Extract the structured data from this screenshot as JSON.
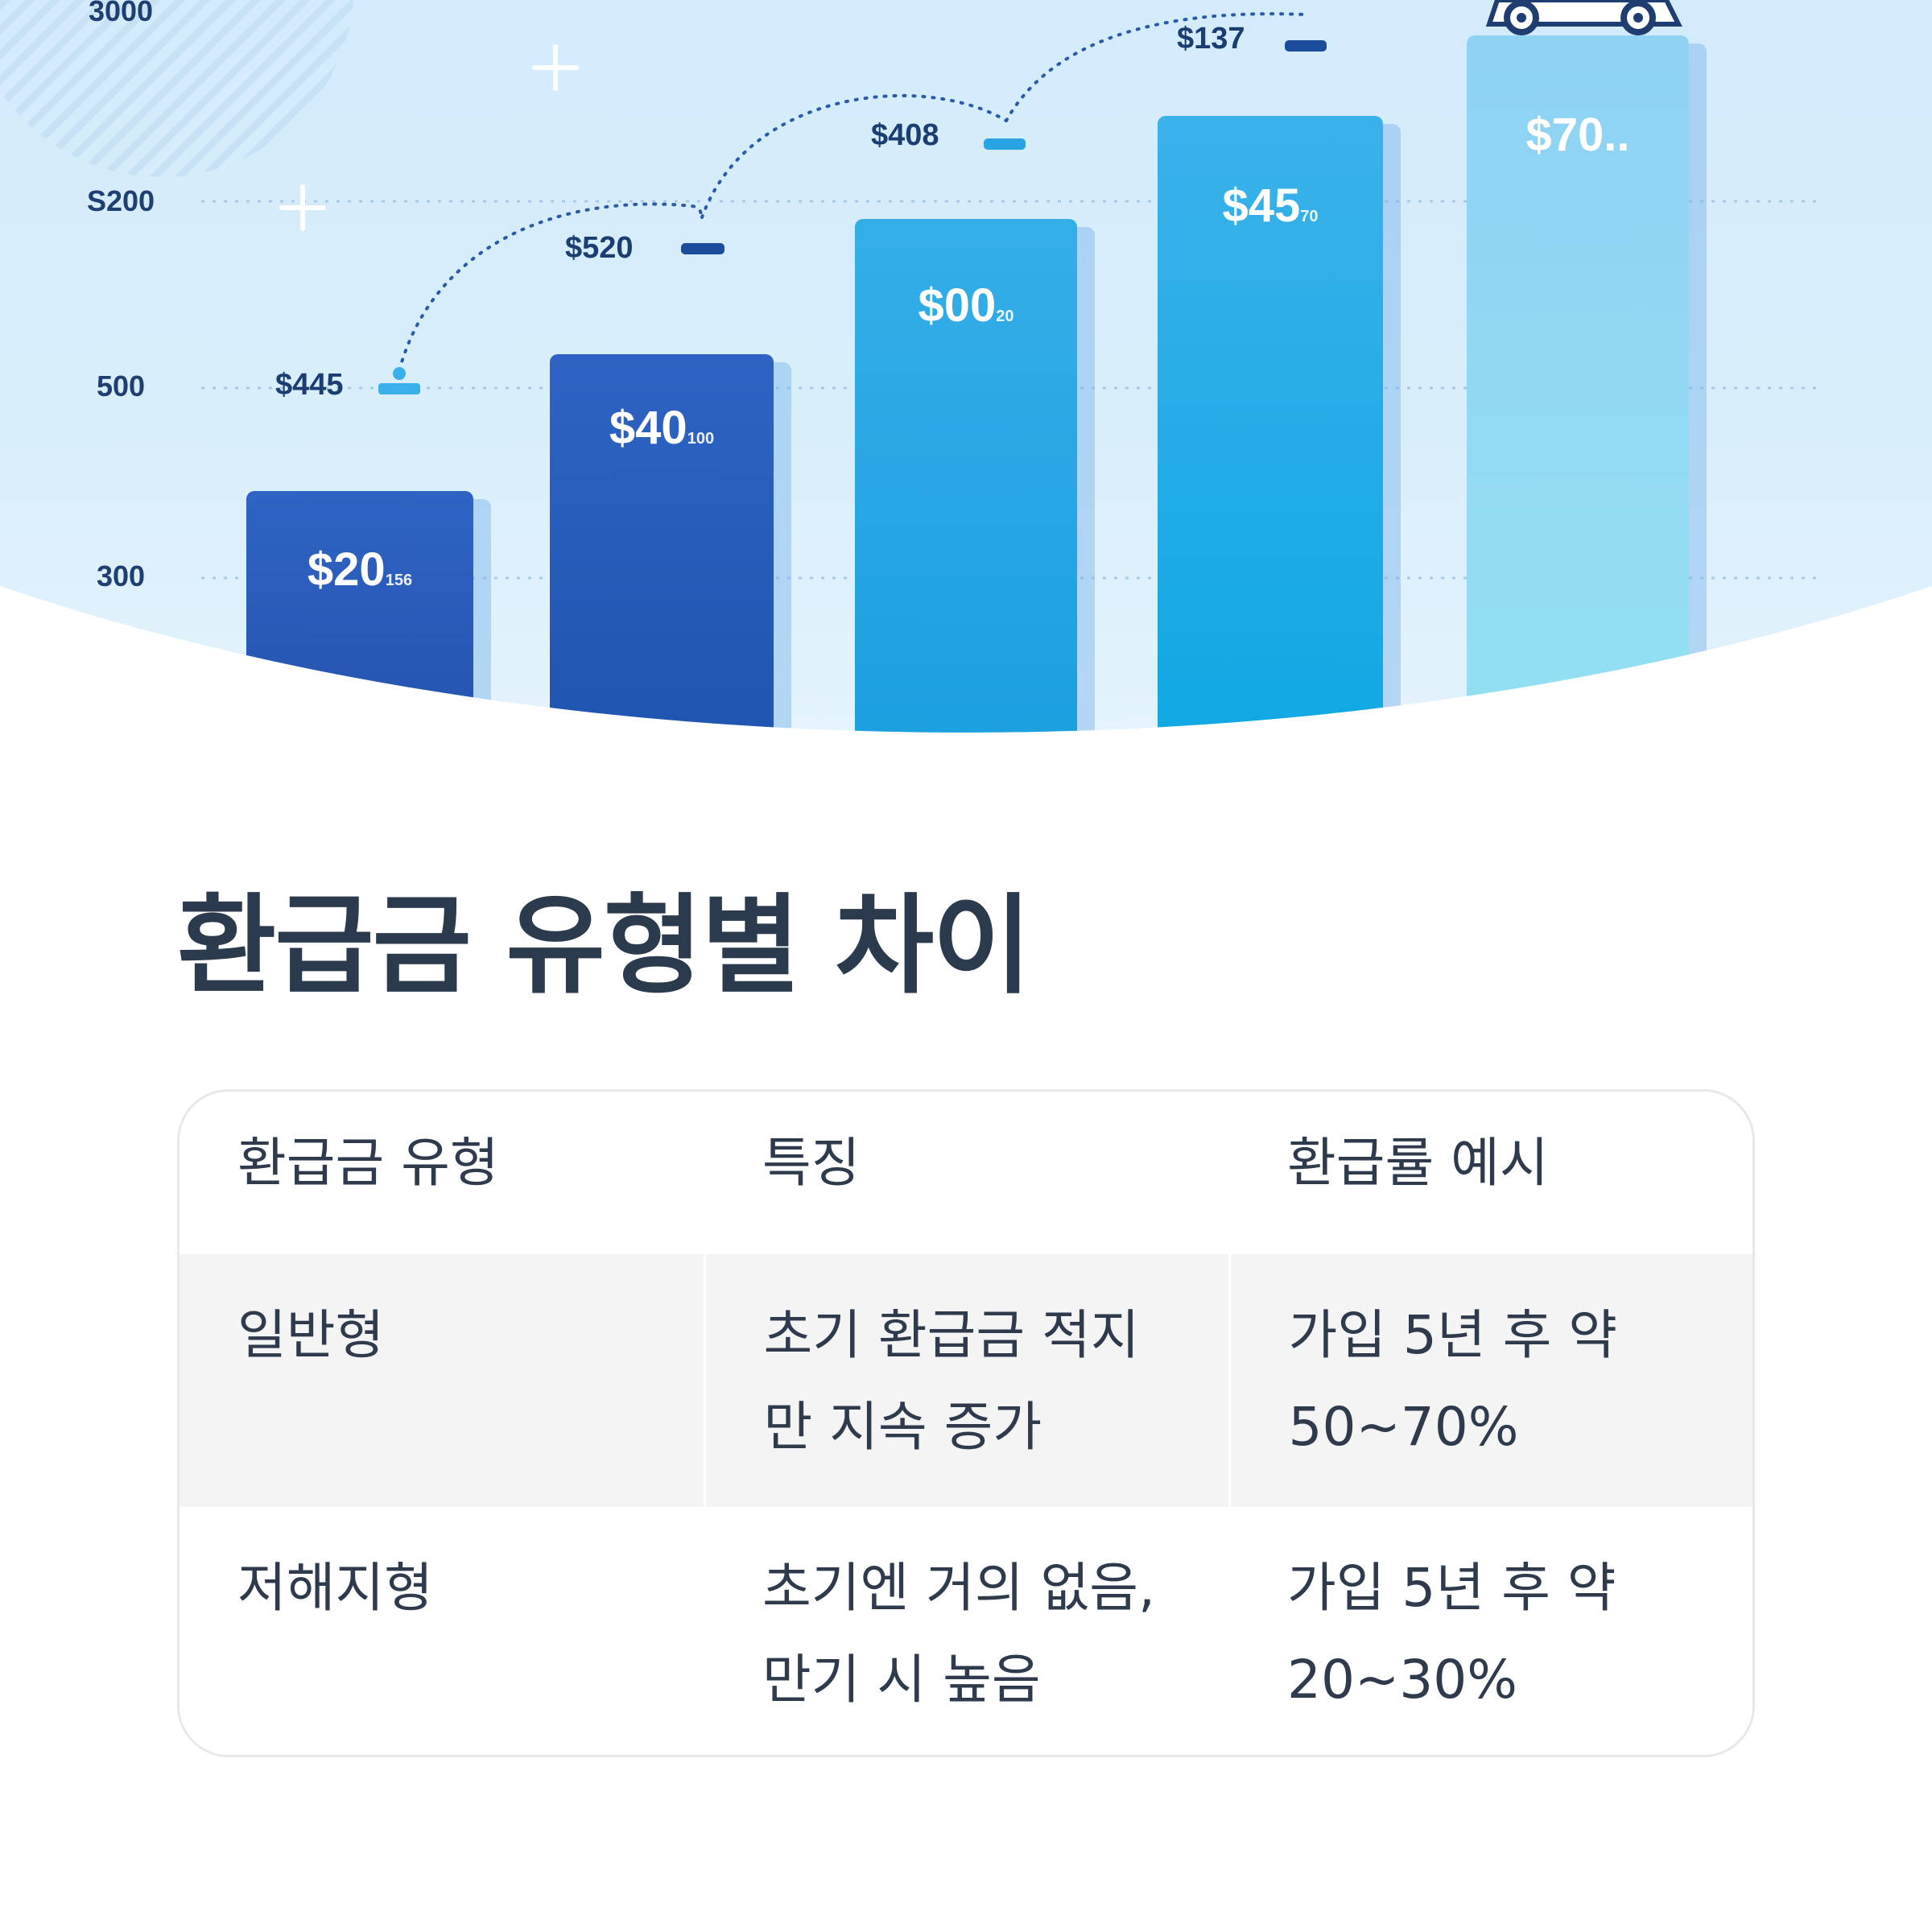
{
  "hero": {
    "y_ticks": [
      "3000",
      "S200",
      "500",
      "300"
    ],
    "bars": [
      {
        "main": "$20",
        "sup": "156",
        "color_top": "#2f64c4",
        "color_bottom": "#2451ae"
      },
      {
        "main": "$40",
        "sup": "100",
        "color_top": "#2e63c3",
        "color_bottom": "#1f55b0"
      },
      {
        "main": "$00",
        "sup": "20",
        "color_top": "#35aee8",
        "color_bottom": "#1b9fe0"
      },
      {
        "main": "$45",
        "sup": "70",
        "color_top": "#3bb1ea",
        "color_bottom": "#0fa8e3"
      },
      {
        "main": "$70..",
        "sup": "",
        "color_top": "#8fd2f4",
        "color_bottom": "#93e0f2"
      }
    ],
    "annotations": [
      "$445",
      "$520",
      "$408",
      "$137"
    ]
  },
  "title": "환급금 유형별 차이",
  "table": {
    "headers": [
      "환급금 유형",
      "특징",
      "환급률 예시"
    ],
    "rows": [
      {
        "type": "일반형",
        "feature_lines": [
          "초기 환급금 적지",
          "만 지속 증가"
        ],
        "rate_lines": [
          "가입 5년 후 약",
          "50~70%"
        ]
      },
      {
        "type": "저해지형",
        "feature_lines": [
          "초기엔 거의 없음,",
          "만기 시 높음"
        ],
        "rate_lines": [
          "가입 5년 후 약",
          "20~30%"
        ]
      }
    ]
  }
}
